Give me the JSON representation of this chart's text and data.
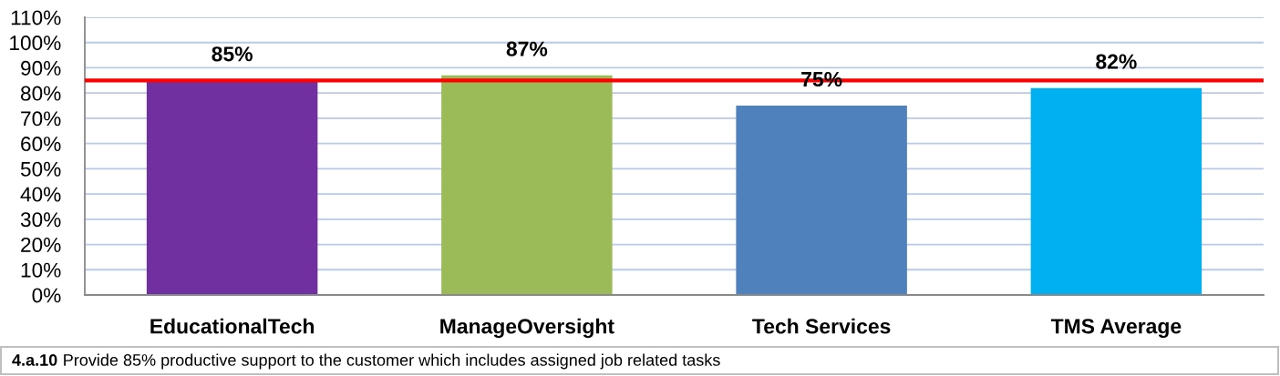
{
  "chart_data": {
    "type": "bar",
    "categories": [
      "EducationalTech",
      "ManageOversight",
      "Tech Services",
      "TMS Average"
    ],
    "values": [
      85,
      87,
      75,
      82
    ],
    "colors": [
      "#7030a0",
      "#9bbb59",
      "#4f81bd",
      "#00b0f0"
    ],
    "value_labels": [
      "85%",
      "87%",
      "75%",
      "82%"
    ],
    "ylim": [
      0,
      110
    ],
    "yticks": [
      {
        "value": 0,
        "label": "0%"
      },
      {
        "value": 10,
        "label": "10%"
      },
      {
        "value": 20,
        "label": "20%"
      },
      {
        "value": 30,
        "label": "30%"
      },
      {
        "value": 40,
        "label": "40%"
      },
      {
        "value": 50,
        "label": "50%"
      },
      {
        "value": 60,
        "label": "60%"
      },
      {
        "value": 70,
        "label": "70%"
      },
      {
        "value": 80,
        "label": "80%"
      },
      {
        "value": 90,
        "label": "90%"
      },
      {
        "value": 100,
        "label": "100%"
      },
      {
        "value": 110,
        "label": "110%"
      }
    ],
    "grid": "y",
    "ref_lines": [
      {
        "axis": "y",
        "value": 85,
        "color": "#ff0000",
        "line_style": "solid"
      }
    ],
    "annotations": [
      "4.a.10",
      "Provide 85% productive support to the customer which includes assigned job related tasks"
    ]
  }
}
